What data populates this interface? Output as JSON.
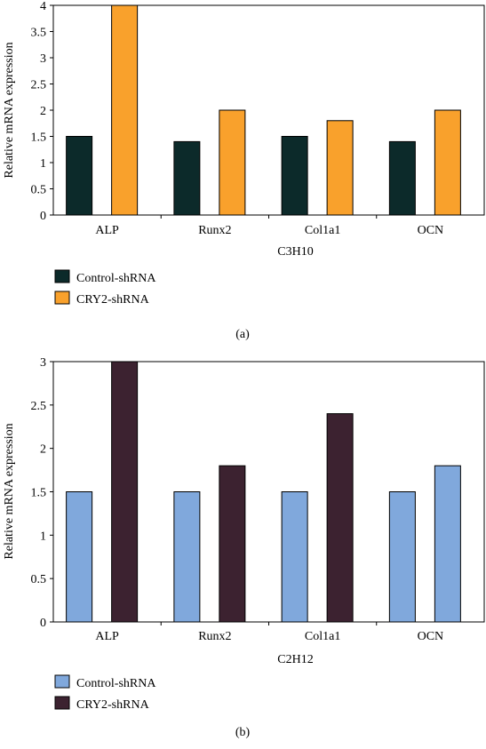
{
  "chart_data": [
    {
      "type": "bar",
      "panel_label": "(a)",
      "xlabel": "C3H10",
      "ylabel": "Relative mRNA expression",
      "categories": [
        "ALP",
        "Runx2",
        "Col1a1",
        "OCN"
      ],
      "ylim": [
        0,
        4
      ],
      "yticks": [
        "0",
        "0.5",
        "1",
        "1.5",
        "2",
        "2.5",
        "3",
        "3.5",
        "4"
      ],
      "grid": false,
      "legend": "bottom-left",
      "series": [
        {
          "name": "Control-shRNA",
          "color": "#0c2a2a",
          "values": [
            1.5,
            1.4,
            1.5,
            1.4
          ]
        },
        {
          "name": "CRY2-shRNA",
          "color": "#f9a12c",
          "values": [
            4.0,
            2.0,
            1.8,
            2.0
          ]
        }
      ]
    },
    {
      "type": "bar",
      "panel_label": "(b)",
      "xlabel": "C2H12",
      "ylabel": "Relative mRNA expression",
      "categories": [
        "ALP",
        "Runx2",
        "Col1a1",
        "OCN"
      ],
      "ylim": [
        0,
        3
      ],
      "yticks": [
        "0",
        "0.5",
        "1",
        "1.5",
        "2",
        "2.5",
        "3"
      ],
      "grid": false,
      "legend": "bottom-left",
      "series": [
        {
          "name": "Control-shRNA",
          "color": "#80a8dc",
          "values": [
            1.5,
            1.5,
            1.5,
            1.5
          ]
        },
        {
          "name": "CRY2-shRNA",
          "color": "#3c2230",
          "values": [
            3.0,
            1.8,
            2.4,
            1.8
          ]
        }
      ],
      "bar_color_overrides": [
        {
          "series": 1,
          "index": 3,
          "color": "#80a8dc"
        }
      ]
    }
  ]
}
